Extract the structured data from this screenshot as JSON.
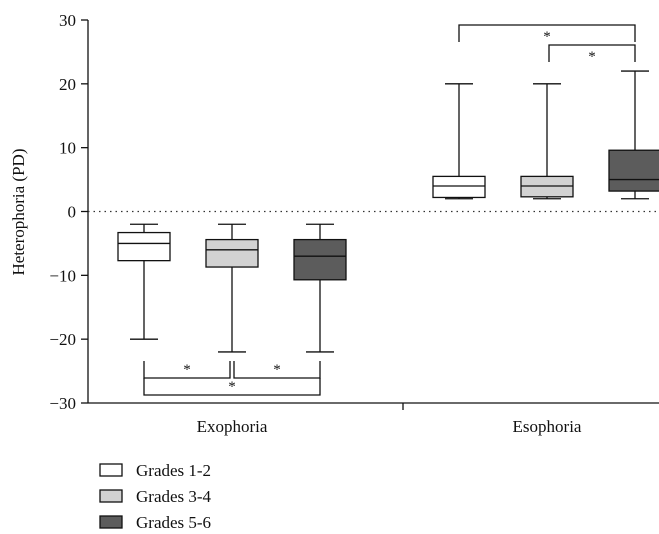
{
  "chart_data": {
    "type": "boxplot",
    "ylabel": "Heterophoria (PD)",
    "ylim": [
      -30,
      30
    ],
    "yticks": [
      -30,
      -20,
      -10,
      0,
      10,
      20,
      30
    ],
    "zero_line": "dotted",
    "groups": [
      "Exophoria",
      "Esophoria"
    ],
    "series": [
      {
        "name": "Grades 1-2",
        "color": "#ffffff",
        "boxes": [
          {
            "group": "Exophoria",
            "min": -20,
            "q1": -7.7,
            "median": -5.0,
            "q3": -3.3,
            "max": -2
          },
          {
            "group": "Esophoria",
            "min": 2,
            "q1": 2.2,
            "median": 4.0,
            "q3": 5.5,
            "max": 20
          }
        ]
      },
      {
        "name": "Grades 3-4",
        "color": "#d2d2d2",
        "boxes": [
          {
            "group": "Exophoria",
            "min": -22,
            "q1": -8.7,
            "median": -6.0,
            "q3": -4.4,
            "max": -2
          },
          {
            "group": "Esophoria",
            "min": 2,
            "q1": 2.3,
            "median": 4.0,
            "q3": 5.5,
            "max": 20
          }
        ]
      },
      {
        "name": "Grades 5-6",
        "color": "#5c5c5c",
        "boxes": [
          {
            "group": "Exophoria",
            "min": -22,
            "q1": -10.7,
            "median": -7.0,
            "q3": -4.4,
            "max": -2
          },
          {
            "group": "Esophoria",
            "min": 2,
            "q1": 3.2,
            "median": 5.0,
            "q3": 9.6,
            "max": 22
          }
        ]
      }
    ],
    "significance": [
      {
        "group": "Exophoria",
        "from": 0,
        "to": 1,
        "level": 1,
        "label": "*"
      },
      {
        "group": "Exophoria",
        "from": 1,
        "to": 2,
        "level": 1,
        "label": "*"
      },
      {
        "group": "Exophoria",
        "from": 0,
        "to": 2,
        "level": 2,
        "label": "*"
      },
      {
        "group": "Esophoria",
        "from": 1,
        "to": 2,
        "level": 1,
        "label": "*"
      },
      {
        "group": "Esophoria",
        "from": 0,
        "to": 2,
        "level": 2,
        "label": "*"
      }
    ],
    "legend_position": "bottom-left"
  }
}
